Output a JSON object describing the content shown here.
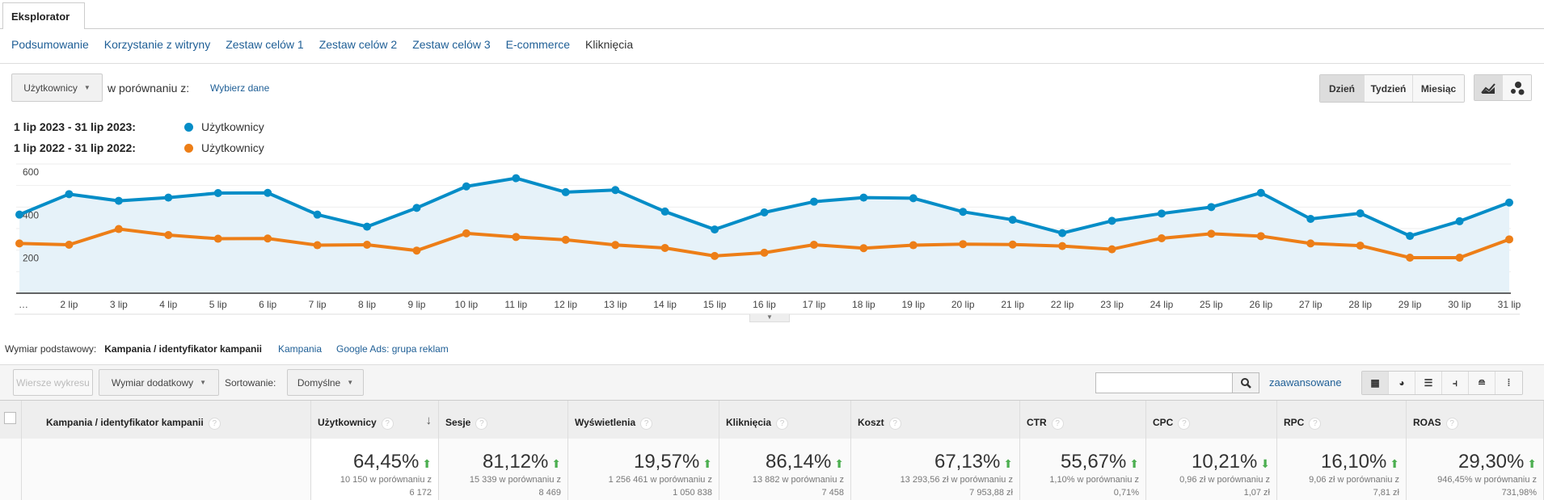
{
  "tab": "Eksplorator",
  "nav": [
    "Podsumowanie",
    "Korzystanie z witryny",
    "Zestaw celów 1",
    "Zestaw celów 2",
    "Zestaw celów 3",
    "E-commerce",
    "Kliknięcia"
  ],
  "metric_select": "Użytkownicy",
  "compare_label": "w porównaniu z:",
  "compare_link": "Wybierz dane",
  "period": [
    "Dzień",
    "Tydzień",
    "Miesiąc"
  ],
  "legend": [
    {
      "range": "1 lip 2023 - 31 lip 2023:",
      "label": "Użytkownicy",
      "color": "#058dc7"
    },
    {
      "range": "1 lip 2022 - 31 lip 2022:",
      "label": "Użytkownicy",
      "color": "#ed7e17"
    }
  ],
  "chart_data": {
    "type": "line",
    "categories": [
      "…",
      "2 lip",
      "3 lip",
      "4 lip",
      "5 lip",
      "6 lip",
      "7 lip",
      "8 lip",
      "9 lip",
      "10 lip",
      "11 lip",
      "12 lip",
      "13 lip",
      "14 lip",
      "15 lip",
      "16 lip",
      "17 lip",
      "18 lip",
      "19 lip",
      "20 lip",
      "21 lip",
      "22 lip",
      "23 lip",
      "24 lip",
      "25 lip",
      "26 lip",
      "27 lip",
      "28 lip",
      "29 lip",
      "30 lip",
      "31 lip"
    ],
    "yticks": [
      "200",
      "400",
      "600"
    ],
    "ylim": [
      0,
      600
    ],
    "series": [
      {
        "name": "Użytkownicy 2023",
        "color": "#058dc7",
        "values": [
          365,
          460,
          429,
          444,
          465,
          466,
          365,
          309,
          396,
          496,
          534,
          469,
          479,
          379,
          296,
          375,
          425,
          444,
          441,
          378,
          341,
          279,
          336,
          370,
          400,
          466,
          345,
          371,
          266,
          334,
          421
        ]
      },
      {
        "name": "Użytkownicy 2022",
        "color": "#ed7e17",
        "values": [
          231,
          225,
          298,
          270,
          253,
          254,
          223,
          225,
          198,
          278,
          261,
          248,
          224,
          210,
          173,
          188,
          225,
          209,
          223,
          228,
          226,
          219,
          204,
          255,
          276,
          265,
          231,
          221,
          165,
          165,
          250
        ]
      }
    ]
  },
  "dimension": {
    "label": "Wymiar podstawowy:",
    "active": "Kampania / identyfikator kampanii",
    "links": [
      "Kampania",
      "Google Ads: grupa reklam"
    ]
  },
  "toolbar": {
    "plot_rows": "Wiersze wykresu",
    "secondary": "Wymiar dodatkowy",
    "sort_label": "Sortowanie:",
    "sort_value": "Domyślne",
    "search_value": "",
    "advanced": "zaawansowane"
  },
  "table": {
    "first_col": "Kampania / identyfikator kampanii",
    "columns": [
      {
        "name": "Użytkownicy",
        "pct": "64,45%",
        "dir": "up",
        "cmp": "10 150 w porównaniu z",
        "prev": "6 172"
      },
      {
        "name": "Sesje",
        "pct": "81,12%",
        "dir": "up",
        "cmp": "15 339 w porównaniu z",
        "prev": "8 469"
      },
      {
        "name": "Wyświetlenia",
        "pct": "19,57%",
        "dir": "up",
        "cmp": "1 256 461 w porównaniu z",
        "prev": "1 050 838"
      },
      {
        "name": "Kliknięcia",
        "pct": "86,14%",
        "dir": "up",
        "cmp": "13 882 w porównaniu z",
        "prev": "7 458"
      },
      {
        "name": "Koszt",
        "pct": "67,13%",
        "dir": "up",
        "cmp": "13 293,56 zł w porównaniu z",
        "prev": "7 953,88 zł"
      },
      {
        "name": "CTR",
        "pct": "55,67%",
        "dir": "up",
        "cmp": "1,10% w porównaniu z",
        "prev": "0,71%"
      },
      {
        "name": "CPC",
        "pct": "10,21%",
        "dir": "down",
        "cmp": "0,96 zł w porównaniu z",
        "prev": "1,07 zł"
      },
      {
        "name": "RPC",
        "pct": "16,10%",
        "dir": "up",
        "cmp": "9,06 zł w porównaniu z",
        "prev": "7,81 zł"
      },
      {
        "name": "ROAS",
        "pct": "29,30%",
        "dir": "up",
        "cmp": "946,45% w porównaniu z",
        "prev": "731,98%"
      }
    ]
  }
}
